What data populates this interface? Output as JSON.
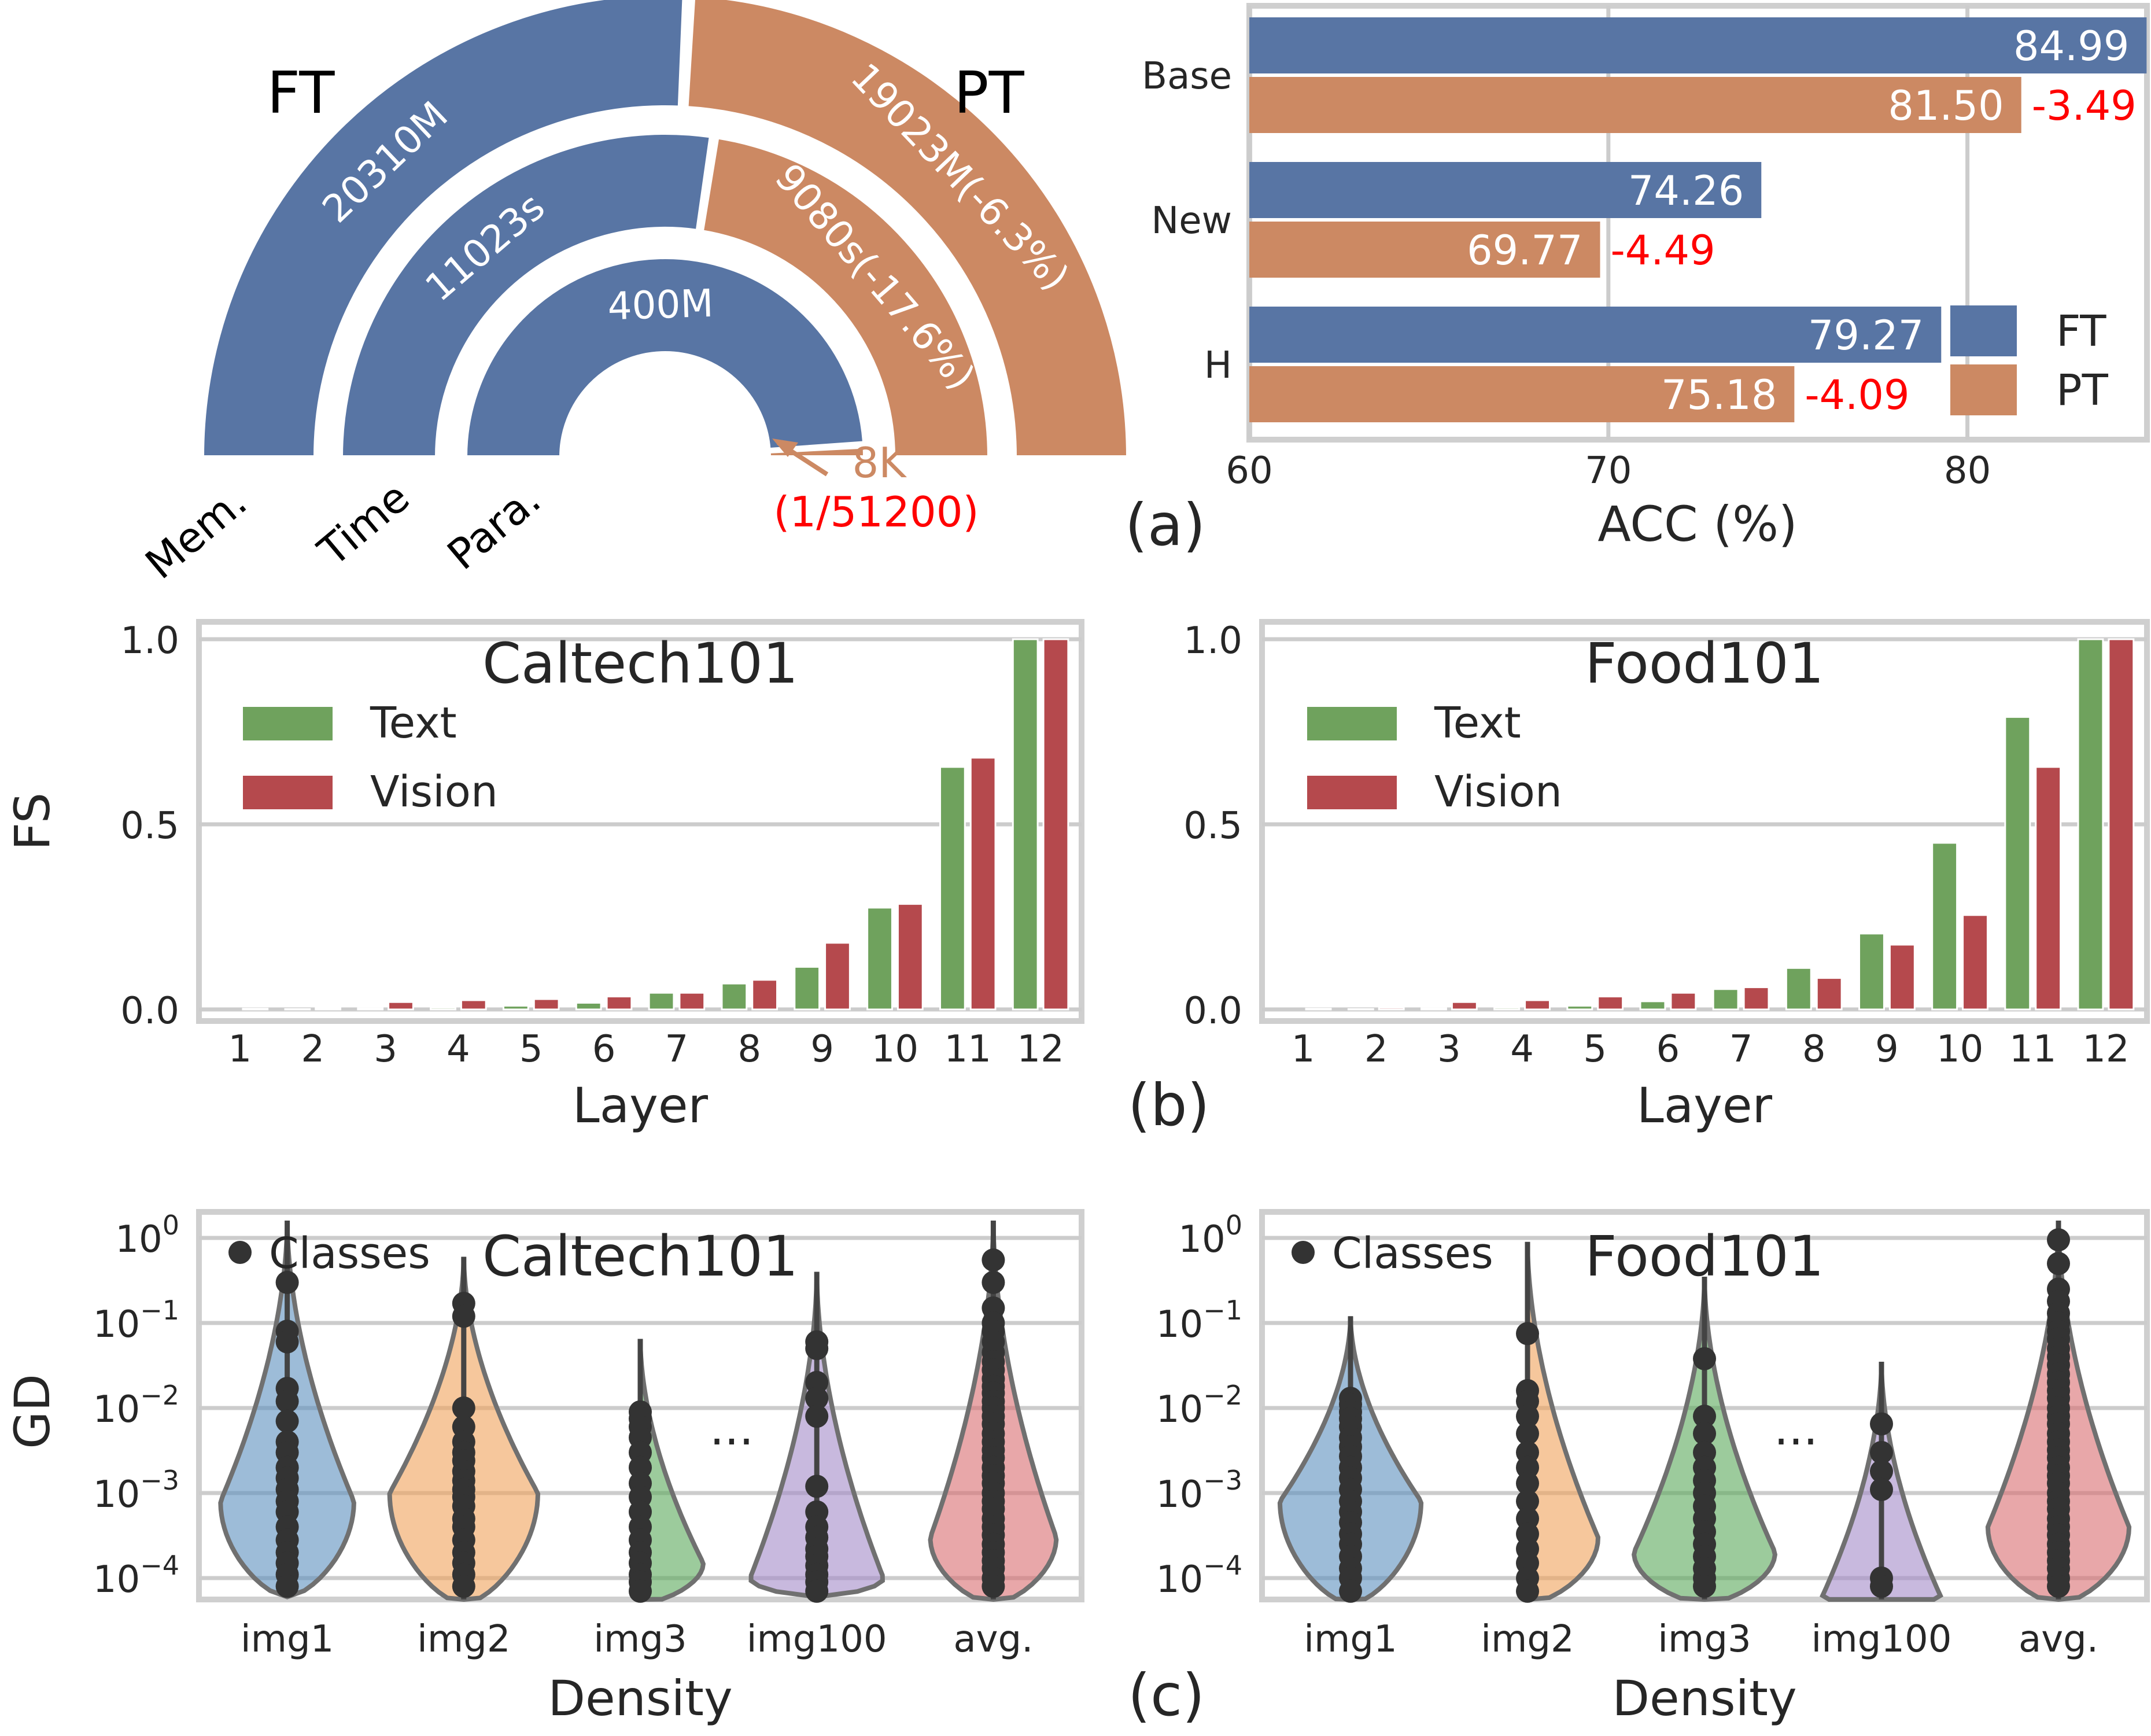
{
  "colors": {
    "ft": "#5875a4",
    "pt": "#cc8963",
    "text": "#6fa25d",
    "vision": "#b5494d",
    "delta": "#ff0000",
    "dots": "#333333",
    "violins": [
      "#5b8fbe",
      "#f0a15a",
      "#5aa85a",
      "#a48bc8",
      "#d96c6f"
    ]
  },
  "panel_letters": {
    "a": "(a)",
    "b": "(b)",
    "c": "(c)"
  },
  "chart_data": [
    {
      "id": "radial",
      "type": "bar",
      "subtype": "radial-half-donut",
      "labels": {
        "left": "FT",
        "right": "PT"
      },
      "rings": [
        {
          "name": "Mem.",
          "ft_label": "20310M",
          "pt_label": "19023M(-6.3%)",
          "ft": 20310,
          "pt": 19023
        },
        {
          "name": "Time",
          "ft_label": "11023s",
          "pt_label": "9080s(-17.6%)",
          "ft": 11023,
          "pt": 9080
        },
        {
          "name": "Para.",
          "ft_label": "400M",
          "pt_label": "8K",
          "pt_note": "(1/51200)",
          "ft": 400000000,
          "pt": 8000
        }
      ]
    },
    {
      "id": "acc",
      "type": "bar",
      "orientation": "horizontal",
      "categories": [
        "Base",
        "New",
        "H"
      ],
      "series": [
        {
          "name": "FT",
          "values": [
            84.99,
            74.26,
            79.27
          ]
        },
        {
          "name": "PT",
          "values": [
            81.5,
            69.77,
            75.18
          ]
        }
      ],
      "deltas": [
        "-3.49",
        "-4.49",
        "-4.09"
      ],
      "bar_labels": {
        "ft": [
          "84.99",
          "74.26",
          "79.27"
        ],
        "pt": [
          "81.50",
          "69.77",
          "75.18"
        ]
      },
      "xlabel": "ACC (%)",
      "xlim": [
        60,
        85
      ],
      "xticks": [
        60,
        70,
        80
      ],
      "grid": true,
      "legend": "lower-right"
    },
    {
      "id": "fs_caltech",
      "type": "bar",
      "title": "Caltech101",
      "categories": [
        "1",
        "2",
        "3",
        "4",
        "5",
        "6",
        "7",
        "8",
        "9",
        "10",
        "11",
        "12"
      ],
      "series": [
        {
          "name": "Text",
          "values": [
            0.0,
            0.001,
            0.003,
            0.005,
            0.01,
            0.018,
            0.045,
            0.07,
            0.115,
            0.275,
            0.655,
            1.0
          ]
        },
        {
          "name": "Vision",
          "values": [
            0.002,
            0.004,
            0.02,
            0.025,
            0.028,
            0.035,
            0.045,
            0.08,
            0.18,
            0.285,
            0.68,
            1.0
          ]
        }
      ],
      "xlabel": "Layer",
      "ylabel": "FS",
      "ylim": [
        0,
        1.0
      ],
      "yticks": [
        "0.0",
        "0.5",
        "1.0"
      ],
      "grid": true,
      "legend": "upper-left"
    },
    {
      "id": "fs_food",
      "type": "bar",
      "title": "Food101",
      "categories": [
        "1",
        "2",
        "3",
        "4",
        "5",
        "6",
        "7",
        "8",
        "9",
        "10",
        "11",
        "12"
      ],
      "series": [
        {
          "name": "Text",
          "values": [
            0.0,
            0.001,
            0.003,
            0.005,
            0.01,
            0.022,
            0.055,
            0.112,
            0.205,
            0.45,
            0.79,
            1.0
          ]
        },
        {
          "name": "Vision",
          "values": [
            0.002,
            0.005,
            0.02,
            0.025,
            0.035,
            0.045,
            0.06,
            0.085,
            0.175,
            0.255,
            0.655,
            1.0
          ]
        }
      ],
      "xlabel": "Layer",
      "ylim": [
        0,
        1.0
      ],
      "yticks": [
        "0.0",
        "0.5",
        "1.0"
      ],
      "grid": true,
      "legend": "upper-left"
    },
    {
      "id": "gd_caltech",
      "type": "scatter",
      "subtype": "violin",
      "title": "Caltech101",
      "categories": [
        "img1",
        "img2",
        "img3",
        "img100",
        "avg."
      ],
      "ellipsis": "···",
      "legend_entry": "Classes",
      "xlabel": "Density",
      "ylabel": "GD",
      "yscale": "log",
      "ylim": [
        5e-05,
        1.6
      ],
      "yticks": [
        {
          "base": "10",
          "exp": "0"
        },
        {
          "base": "10",
          "exp": "−1"
        },
        {
          "base": "10",
          "exp": "−2"
        },
        {
          "base": "10",
          "exp": "−3"
        },
        {
          "base": "10",
          "exp": "−4"
        }
      ],
      "violins": [
        {
          "lo": 6e-05,
          "hi": 1.6,
          "mode": 0.0008,
          "width": 0.9
        },
        {
          "lo": 5e-05,
          "hi": 0.6,
          "mode": 0.001,
          "width": 1.0
        },
        {
          "lo": 5e-05,
          "hi": 0.065,
          "mode": 0.00015,
          "width": 0.85
        },
        {
          "lo": 6e-05,
          "hi": 0.4,
          "mode": 0.0001,
          "width": 0.9
        },
        {
          "lo": 5e-05,
          "hi": 1.6,
          "mode": 0.0003,
          "width": 0.85
        }
      ],
      "points": [
        [
          0.3,
          0.08,
          0.06,
          0.017,
          0.012,
          0.007,
          0.004,
          0.003,
          0.002,
          0.0015,
          0.0011,
          0.0008,
          0.0006,
          0.0004,
          0.00028,
          0.0002,
          0.00015,
          0.00011,
          8e-05,
          6e-05
        ],
        [
          0.17,
          0.12,
          0.01,
          0.006,
          0.004,
          0.003,
          0.0024,
          0.0018,
          0.0014,
          0.0011,
          0.0009,
          0.0007,
          0.0005,
          0.0004,
          0.00028,
          0.0002,
          0.00015,
          0.00011,
          8e-05,
          6e-05
        ],
        [
          0.009,
          0.0075,
          0.006,
          0.0045,
          0.003,
          0.002,
          0.0013,
          0.0009,
          0.0006,
          0.0004,
          0.00028,
          0.0002,
          0.00015,
          0.00011,
          9e-05,
          7e-05,
          6e-05
        ],
        [
          0.06,
          0.05,
          0.02,
          0.013,
          0.008,
          0.0012,
          0.0006,
          0.0004,
          0.0003,
          0.00022,
          0.00018,
          0.00014,
          0.00011,
          9e-05,
          7e-05,
          6e-05
        ],
        [
          0.55,
          0.3,
          0.15,
          0.1,
          0.08,
          0.06,
          0.045,
          0.035,
          0.028,
          0.022,
          0.018,
          0.015,
          0.012,
          0.01,
          0.008,
          0.0065,
          0.005,
          0.004,
          0.0032,
          0.0026,
          0.002,
          0.0016,
          0.0013,
          0.001,
          0.0008,
          0.00065,
          0.0005,
          0.0004,
          0.00032,
          0.00025,
          0.0002,
          0.00016,
          0.00013,
          0.0001,
          8e-05,
          6e-05
        ]
      ]
    },
    {
      "id": "gd_food",
      "type": "scatter",
      "subtype": "violin",
      "title": "Food101",
      "categories": [
        "img1",
        "img2",
        "img3",
        "img100",
        "avg."
      ],
      "ellipsis": "···",
      "legend_entry": "Classes",
      "xlabel": "Density",
      "yscale": "log",
      "ylim": [
        5e-05,
        1.6
      ],
      "yticks": [
        {
          "base": "10",
          "exp": "0"
        },
        {
          "base": "10",
          "exp": "−1"
        },
        {
          "base": "10",
          "exp": "−2"
        },
        {
          "base": "10",
          "exp": "−3"
        },
        {
          "base": "10",
          "exp": "−4"
        }
      ],
      "violins": [
        {
          "lo": 5e-05,
          "hi": 0.12,
          "mode": 0.0008,
          "width": 0.95
        },
        {
          "lo": 5e-05,
          "hi": 0.9,
          "mode": 0.0003,
          "width": 0.95
        },
        {
          "lo": 5e-05,
          "hi": 0.35,
          "mode": 0.0002,
          "width": 0.95
        },
        {
          "lo": 5e-05,
          "hi": 0.035,
          "mode": 6e-05,
          "width": 0.8
        },
        {
          "lo": 5e-05,
          "hi": 1.6,
          "mode": 0.0004,
          "width": 0.95
        }
      ],
      "points": [
        [
          0.013,
          0.011,
          0.009,
          0.0075,
          0.006,
          0.0045,
          0.0035,
          0.0027,
          0.002,
          0.0015,
          0.0011,
          0.0008,
          0.0006,
          0.00045,
          0.00033,
          0.00025,
          0.00018,
          0.00013,
          0.0001,
          7e-05
        ],
        [
          0.075,
          0.016,
          0.012,
          0.008,
          0.005,
          0.003,
          0.002,
          0.0013,
          0.0008,
          0.0005,
          0.00033,
          0.00022,
          0.00015,
          0.0001,
          7e-05
        ],
        [
          0.038,
          0.008,
          0.005,
          0.003,
          0.002,
          0.0014,
          0.001,
          0.0007,
          0.0005,
          0.00035,
          0.00025,
          0.00018,
          0.00013,
          0.0001,
          8e-05,
          6e-05
        ],
        [
          0.0065,
          0.003,
          0.0018,
          0.0011,
          0.0001,
          8e-05,
          6e-05
        ],
        [
          0.95,
          0.5,
          0.25,
          0.18,
          0.13,
          0.1,
          0.08,
          0.065,
          0.05,
          0.04,
          0.032,
          0.025,
          0.02,
          0.016,
          0.013,
          0.01,
          0.008,
          0.0065,
          0.005,
          0.004,
          0.0032,
          0.0026,
          0.002,
          0.0016,
          0.0013,
          0.001,
          0.0008,
          0.00065,
          0.0005,
          0.0004,
          0.00032,
          0.00025,
          0.0002,
          0.00016,
          0.00013,
          0.0001,
          8e-05,
          6e-05
        ]
      ]
    }
  ]
}
